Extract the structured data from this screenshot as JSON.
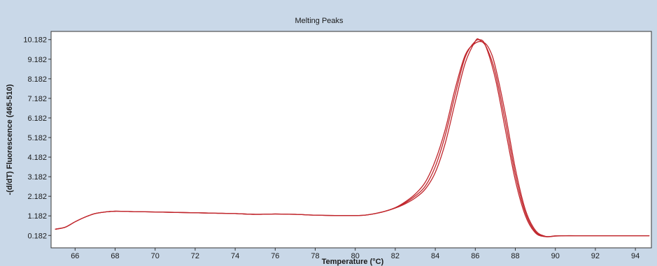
{
  "chart_data": {
    "type": "line",
    "title": "Melting Peaks",
    "xlabel": "Temperature (°C)",
    "ylabel": "-(d/dT) Fluorescence (465-510)",
    "xlim": [
      64.8,
      94.8
    ],
    "ylim": [
      -0.45,
      10.6
    ],
    "x_ticks": [
      66,
      68,
      70,
      72,
      74,
      76,
      78,
      80,
      82,
      84,
      86,
      88,
      90,
      92,
      94
    ],
    "y_ticks": [
      0.182,
      1.182,
      2.182,
      3.182,
      4.182,
      5.182,
      6.182,
      7.182,
      8.182,
      9.182,
      10.182
    ],
    "y_tick_labels": [
      "0.182",
      "1.182",
      "2.182",
      "3.182",
      "4.182",
      "5.182",
      "6.182",
      "7.182",
      "8.182",
      "9.182",
      "10.182"
    ],
    "grid": false,
    "series": [
      {
        "color": "#c0262c",
        "x": [
          65,
          65.5,
          66,
          66.5,
          67,
          67.5,
          68,
          69,
          70,
          71,
          72,
          73,
          74,
          75,
          76,
          77,
          78,
          79,
          80,
          80.5,
          81,
          81.5,
          82,
          82.5,
          83,
          83.5,
          84,
          84.5,
          85,
          85.5,
          86,
          86.2,
          86.5,
          87,
          87.5,
          88,
          88.5,
          89,
          89.5,
          90,
          90.5,
          91,
          92,
          93,
          94,
          94.7
        ],
        "y": [
          0.5,
          0.6,
          0.88,
          1.12,
          1.3,
          1.38,
          1.42,
          1.4,
          1.38,
          1.36,
          1.34,
          1.32,
          1.3,
          1.26,
          1.28,
          1.26,
          1.22,
          1.2,
          1.2,
          1.22,
          1.3,
          1.42,
          1.58,
          1.8,
          2.1,
          2.55,
          3.4,
          4.9,
          7.0,
          9.0,
          10.1,
          10.18,
          9.9,
          8.2,
          5.6,
          3.0,
          1.2,
          0.32,
          0.12,
          0.15,
          0.17,
          0.17,
          0.17,
          0.17,
          0.17,
          0.17
        ]
      },
      {
        "color": "#c0262c",
        "x": [
          65,
          65.5,
          66,
          66.5,
          67,
          67.5,
          68,
          69,
          70,
          71,
          72,
          73,
          74,
          75,
          76,
          77,
          78,
          79,
          80,
          80.5,
          81,
          81.5,
          82,
          82.5,
          83,
          83.5,
          84,
          84.5,
          85,
          85.5,
          86,
          86.3,
          86.6,
          87,
          87.5,
          88,
          88.5,
          89,
          89.5,
          90,
          90.5,
          91,
          92,
          93,
          94,
          94.7
        ],
        "y": [
          0.5,
          0.6,
          0.88,
          1.12,
          1.3,
          1.38,
          1.42,
          1.4,
          1.38,
          1.36,
          1.34,
          1.32,
          1.3,
          1.26,
          1.28,
          1.26,
          1.22,
          1.2,
          1.2,
          1.22,
          1.3,
          1.42,
          1.6,
          1.85,
          2.2,
          2.7,
          3.7,
          5.3,
          7.4,
          9.3,
          10.1,
          10.1,
          9.7,
          8.5,
          6.0,
          3.3,
          1.35,
          0.38,
          0.13,
          0.16,
          0.17,
          0.17,
          0.17,
          0.17,
          0.17,
          0.17
        ]
      },
      {
        "color": "#c0262c",
        "x": [
          65,
          65.5,
          66,
          66.5,
          67,
          67.5,
          68,
          69,
          70,
          71,
          72,
          73,
          74,
          75,
          76,
          77,
          78,
          79,
          80,
          80.5,
          81,
          81.5,
          82,
          82.5,
          83,
          83.5,
          84,
          84.5,
          85,
          85.5,
          86,
          86.4,
          86.7,
          87,
          87.5,
          88,
          88.5,
          89,
          89.5,
          90,
          90.5,
          91,
          92,
          93,
          94,
          94.7
        ],
        "y": [
          0.5,
          0.6,
          0.88,
          1.12,
          1.3,
          1.38,
          1.42,
          1.4,
          1.38,
          1.36,
          1.34,
          1.32,
          1.3,
          1.26,
          1.28,
          1.26,
          1.22,
          1.2,
          1.2,
          1.22,
          1.3,
          1.42,
          1.6,
          1.9,
          2.3,
          2.9,
          4.0,
          5.6,
          7.7,
          9.4,
          10.0,
          10.05,
          9.7,
          8.8,
          6.4,
          3.6,
          1.5,
          0.45,
          0.14,
          0.16,
          0.17,
          0.17,
          0.17,
          0.17,
          0.17,
          0.17
        ]
      }
    ]
  }
}
